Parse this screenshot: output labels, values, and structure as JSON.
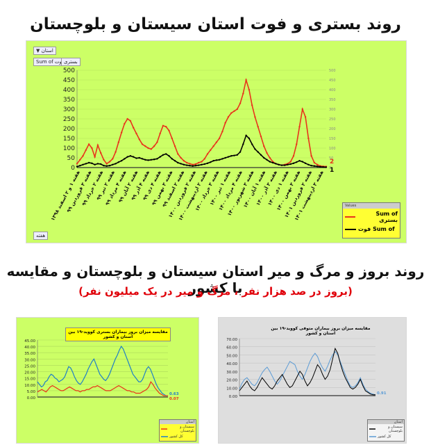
{
  "page": {
    "title_top": "روند بستری و فوت استان سیستان و بلوچستان",
    "title_bottom": "روند بروز و مرگ و میر استان سیستان و بلوچستان و مقایسه با کشور",
    "subtitle_bottom": "(بروز در صد هزار نفر ، مرگ و میر در یک میلیون نفر)"
  },
  "top_chart": {
    "filter_button": "استان",
    "field_button_a": "Sum of فوت",
    "field_button_b": "بستری",
    "bottom_button": "هفته",
    "legend_title": "Values",
    "right_end_labels": [
      "2",
      "1"
    ],
    "colors": {
      "background": "#ccff66",
      "hospitalized": "#e8331b",
      "deaths": "#000000"
    }
  },
  "chart_data": [
    {
      "type": "line",
      "ylim": [
        0,
        500
      ],
      "yticks": [
        "0",
        "50",
        "100",
        "150",
        "200",
        "250",
        "300",
        "350",
        "400",
        "450",
        "500"
      ],
      "secondary_yticks": [
        "0",
        "50",
        "100",
        "150",
        "200",
        "250",
        "300",
        "350",
        "400",
        "450",
        "500"
      ],
      "x_labels": [
        "هفته ۱ و ۲ اسفند ۱۳۹۸",
        "هفته ۳ فروردین ۹۹",
        "هفته ۲ خرداد ۹۹",
        "هفته ۲ تیر ۹۹",
        "هفته ۴ مرداد ۹۹",
        "هفته ۲ آبان ۹۹",
        "هفته ۴ آذر ۹۹",
        "هفته ۴ دی ۹۹",
        "هفته ۳ بهمن ۹۹",
        "هفته ۲ اسفند ۹۹",
        "هفته ۲ فروردین ۱۴۰۰",
        "هفته ۲ اردیبهشت ۱۴۰۰",
        "هفته ۳ خرداد ۱۴۰۰",
        "هفته ۱ تیر ۱۴۰۰",
        "هفته ۴ مرداد ۱۴۰۰",
        "هفته ۳ شهریور ۱۴۰۰",
        "هفته ۱ آبان ۱۴۰۰",
        "هفته ۳ آذر ۱۴۰۰",
        "هفته ۱ دی ۱۴۰۰",
        "هفته ۳ بهمن ۱۴۰۰",
        "هفته ۲ فروردین ۱۴۰۱",
        "هفته ۳ اردیبهشت ۱۴۰۱"
      ],
      "series": [
        {
          "name": "Sum of بستری",
          "color": "#e8331b",
          "values": [
            20,
            40,
            60,
            90,
            120,
            100,
            55,
            115,
            75,
            40,
            20,
            30,
            45,
            80,
            130,
            180,
            225,
            250,
            240,
            205,
            175,
            145,
            120,
            110,
            100,
            95,
            110,
            130,
            175,
            215,
            210,
            190,
            150,
            110,
            70,
            50,
            35,
            25,
            20,
            15,
            18,
            25,
            30,
            45,
            70,
            90,
            110,
            130,
            150,
            185,
            230,
            260,
            280,
            290,
            300,
            330,
            380,
            450,
            400,
            320,
            260,
            210,
            160,
            110,
            75,
            50,
            30,
            20,
            15,
            12,
            15,
            20,
            30,
            60,
            120,
            210,
            300,
            260,
            150,
            60,
            25,
            15,
            8,
            6,
            5
          ]
        },
        {
          "name": "Sum of فوت",
          "color": "#000000",
          "values": [
            5,
            10,
            15,
            20,
            25,
            22,
            15,
            20,
            18,
            10,
            8,
            10,
            15,
            20,
            28,
            35,
            45,
            55,
            60,
            55,
            48,
            50,
            45,
            40,
            38,
            40,
            42,
            45,
            55,
            65,
            70,
            60,
            45,
            35,
            25,
            20,
            15,
            12,
            10,
            8,
            10,
            12,
            15,
            18,
            22,
            28,
            35,
            38,
            40,
            45,
            50,
            55,
            60,
            62,
            65,
            80,
            120,
            165,
            150,
            120,
            95,
            80,
            65,
            50,
            40,
            30,
            25,
            20,
            15,
            12,
            12,
            15,
            18,
            22,
            28,
            35,
            30,
            22,
            15,
            10,
            8,
            6,
            4,
            3,
            2
          ]
        }
      ]
    },
    {
      "type": "line",
      "title": "مقایسه میزان بروز بیماران بستری کووید-۱۹ بین استان و کشور",
      "ylim": [
        0,
        45
      ],
      "yticks": [
        "0.00",
        "5.00",
        "10.00",
        "15.00",
        "20.00",
        "25.00",
        "30.00",
        "35.00",
        "40.00",
        "45.00"
      ],
      "end_labels": [
        "0.63",
        "0.07"
      ],
      "series": [
        {
          "name": "کل کشور",
          "color": "#1f7fc6",
          "values": [
            12,
            10,
            8,
            9,
            12,
            13,
            16,
            18,
            17,
            15,
            14,
            12,
            13,
            14,
            16,
            20,
            24,
            23,
            20,
            16,
            13,
            11,
            10,
            12,
            15,
            18,
            22,
            25,
            28,
            30,
            26,
            22,
            18,
            16,
            14,
            13,
            15,
            18,
            22,
            26,
            30,
            33,
            37,
            40,
            38,
            34,
            30,
            26,
            22,
            18,
            16,
            14,
            12,
            12,
            14,
            18,
            22,
            24,
            22,
            18,
            14,
            10,
            7,
            5,
            3,
            2,
            1,
            1
          ]
        },
        {
          "name": "سیستان و بلوچستان",
          "color": "#e8331b",
          "values": [
            4,
            5,
            6,
            5,
            4,
            6,
            8,
            9,
            8,
            7,
            6,
            5,
            5,
            6,
            7,
            8,
            7,
            6,
            5,
            5,
            4,
            5,
            5,
            6,
            6,
            7,
            8,
            8,
            9,
            8,
            7,
            6,
            5,
            5,
            5,
            6,
            7,
            8,
            9,
            8,
            7,
            6,
            5,
            5,
            4,
            4,
            3,
            3,
            3,
            4,
            5,
            6,
            8,
            12,
            10,
            7,
            5,
            3,
            2,
            1,
            1,
            1
          ]
        }
      ],
      "legend_header": "استان",
      "legend_items": [
        "سیستان و بلوچستان",
        "کل کشور"
      ]
    },
    {
      "type": "line",
      "title": "مقایسه میزان بروز بیماران متوفی کووید-۱۹ بین استان و کشور",
      "ylim": [
        0,
        70
      ],
      "yticks": [
        "0.00",
        "10.00",
        "20.00",
        "30.00",
        "40.00",
        "50.00",
        "60.00",
        "70.00"
      ],
      "end_labels": [
        "0.91"
      ],
      "series": [
        {
          "name": "کل کشور",
          "color": "#5b9bd5",
          "values": [
            8,
            15,
            20,
            22,
            18,
            14,
            12,
            16,
            22,
            28,
            32,
            35,
            30,
            24,
            18,
            14,
            18,
            24,
            30,
            36,
            42,
            40,
            38,
            30,
            24,
            20,
            26,
            34,
            42,
            48,
            52,
            48,
            40,
            34,
            30,
            36,
            44,
            50,
            54,
            50,
            42,
            34,
            26,
            18,
            12,
            10,
            12,
            16,
            22,
            14,
            8,
            5,
            3,
            2,
            1
          ]
        },
        {
          "name": "سیستان و بلوچستان",
          "color": "#000000",
          "values": [
            6,
            10,
            14,
            18,
            12,
            8,
            6,
            10,
            16,
            22,
            18,
            14,
            10,
            8,
            12,
            18,
            22,
            26,
            20,
            14,
            10,
            12,
            18,
            24,
            30,
            26,
            18,
            12,
            16,
            22,
            30,
            38,
            34,
            26,
            20,
            24,
            32,
            45,
            58,
            52,
            40,
            30,
            22,
            16,
            10,
            8,
            10,
            14,
            20,
            12,
            6,
            4,
            2,
            1,
            1
          ]
        }
      ],
      "legend_header": "استان",
      "legend_items": [
        "سیستان و بلوچستان",
        "کل کشور"
      ]
    }
  ]
}
